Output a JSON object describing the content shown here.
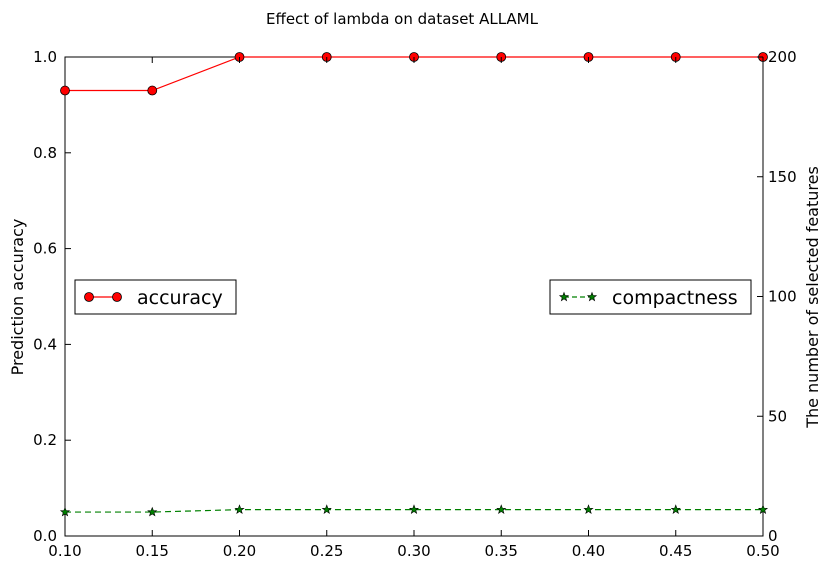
{
  "chart_data": {
    "type": "line",
    "title": "Effect of lambda on dataset ALLAML",
    "xlabel": "",
    "ylabel": "Prediction accuracy",
    "y2label": "The number of selected features",
    "x": [
      0.1,
      0.15,
      0.2,
      0.25,
      0.3,
      0.35,
      0.4,
      0.45,
      0.5
    ],
    "xlim": [
      0.1,
      0.5
    ],
    "xticks": [
      "0.10",
      "0.15",
      "0.20",
      "0.25",
      "0.30",
      "0.35",
      "0.40",
      "0.45",
      "0.50"
    ],
    "ylim": [
      0.0,
      1.0
    ],
    "yticks": [
      "0.0",
      "0.2",
      "0.4",
      "0.6",
      "0.8",
      "1.0"
    ],
    "y2lim": [
      0,
      200
    ],
    "y2ticks": [
      "0",
      "50",
      "100",
      "150",
      "200"
    ],
    "grid": false,
    "series": [
      {
        "name": "accuracy",
        "axis": "left",
        "values": [
          0.93,
          0.93,
          1.0,
          1.0,
          1.0,
          1.0,
          1.0,
          1.0,
          1.0
        ],
        "color": "#ff0000",
        "marker": "circle",
        "line_style": "solid",
        "legend_position": "center-left"
      },
      {
        "name": "compactness",
        "axis": "right",
        "values": [
          10,
          10,
          11,
          11,
          11,
          11,
          11,
          11,
          11
        ],
        "color": "#008000",
        "marker": "star",
        "line_style": "dashed",
        "legend_position": "center-right"
      }
    ]
  }
}
